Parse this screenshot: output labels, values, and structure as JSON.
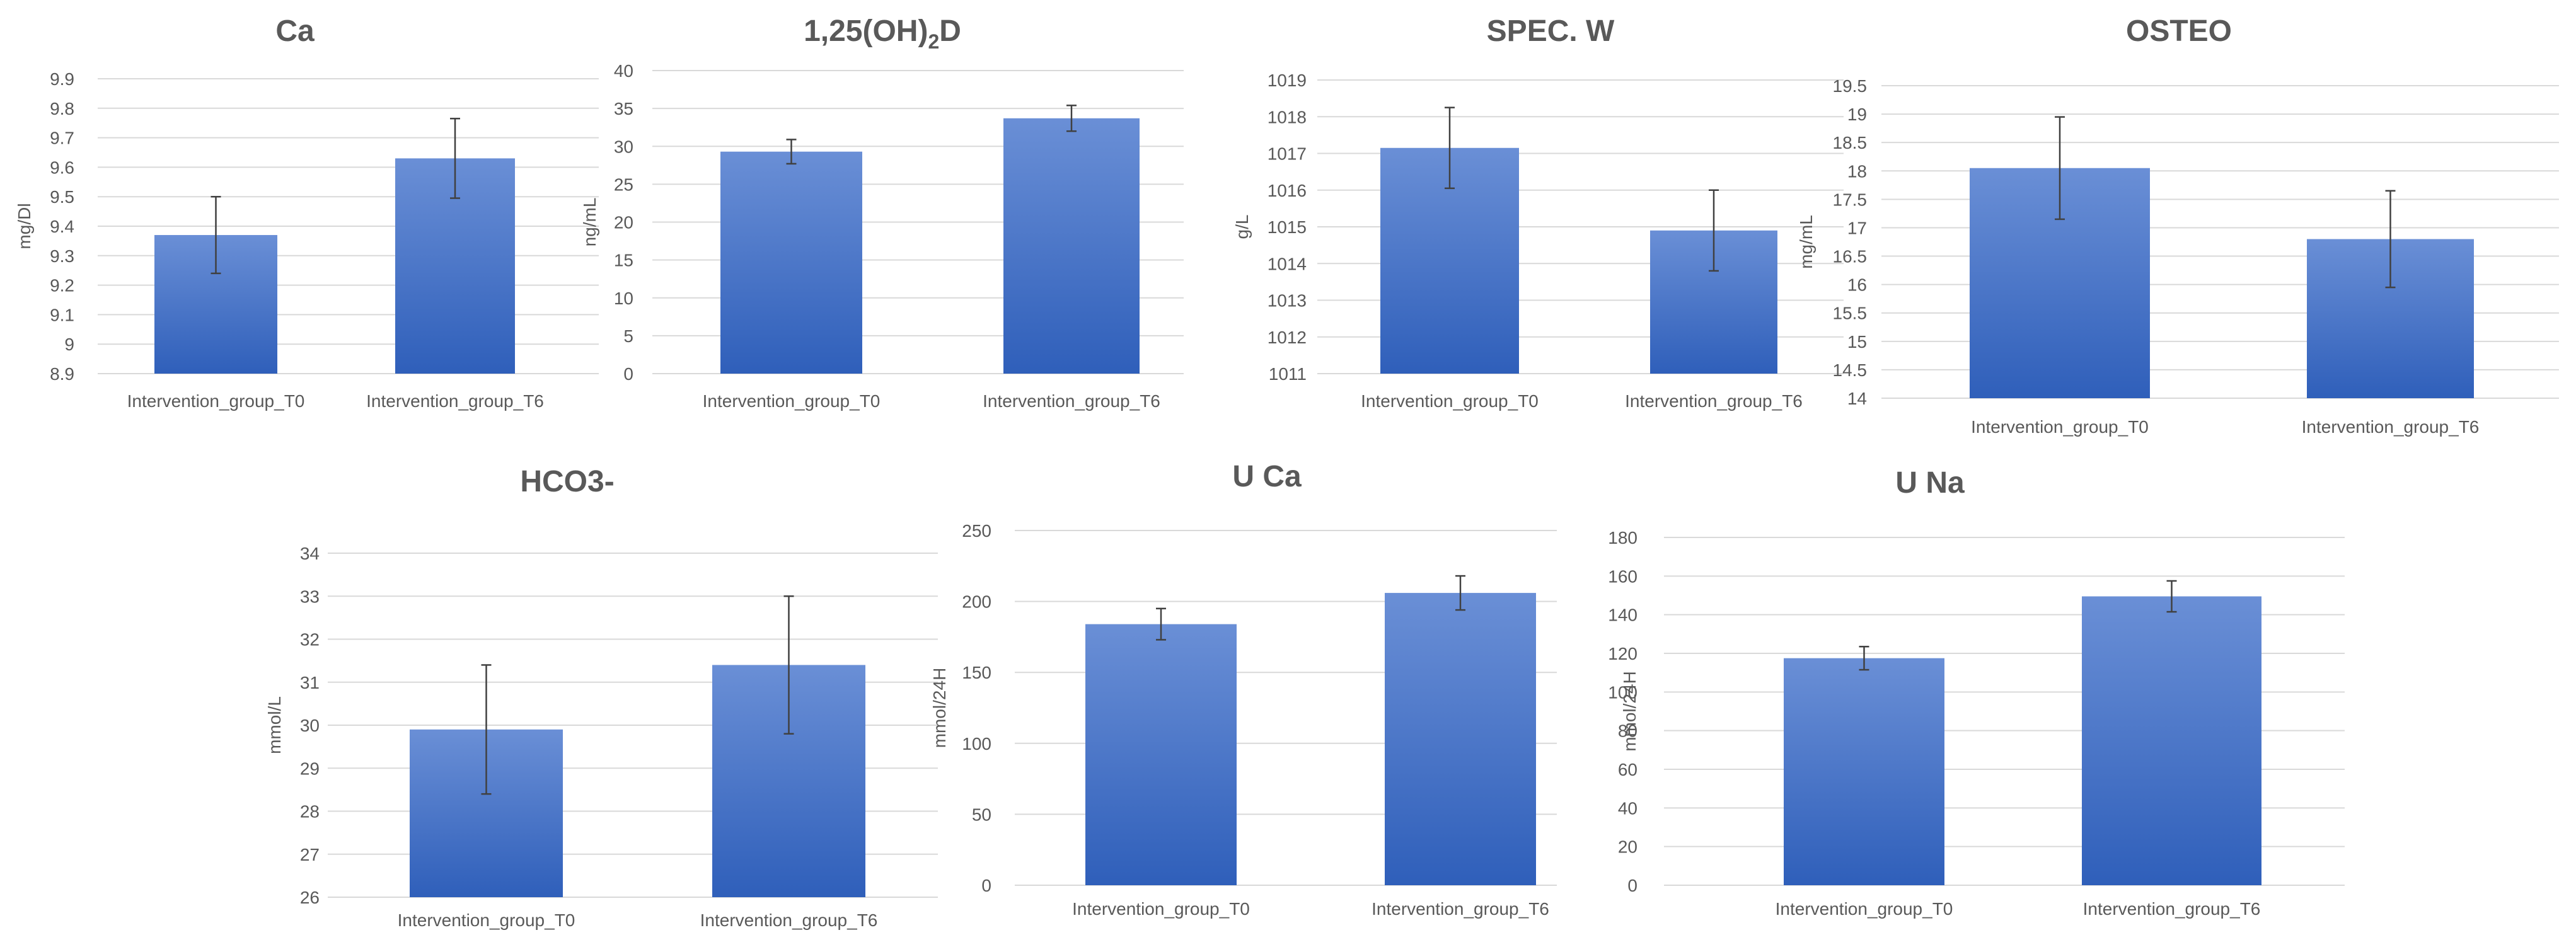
{
  "chart_data": [
    {
      "type": "bar",
      "title": "Ca",
      "ylabel": "mg/Dl",
      "ylim": [
        8.9,
        9.9
      ],
      "ytick_step": 0.1,
      "ytick_labels": [
        "8.9",
        "9",
        "9.1",
        "9.2",
        "9.3",
        "9.4",
        "9.5",
        "9.6",
        "9.7",
        "9.8",
        "9.9"
      ],
      "categories": [
        "Intervention_group_T0",
        "Intervention_group_T6"
      ],
      "values": [
        9.37,
        9.63
      ],
      "errors": [
        0.13,
        0.135
      ]
    },
    {
      "type": "bar",
      "title": "1,25(OH)",
      "title_sub": "2",
      "title_suffix": "D",
      "ylabel": "ng/mL",
      "ylim": [
        0,
        40
      ],
      "ytick_step": 5,
      "ytick_labels": [
        "0",
        "5",
        "10",
        "15",
        "20",
        "25",
        "30",
        "35",
        "40"
      ],
      "categories": [
        "Intervention_group_T0",
        "Intervention_group_T6"
      ],
      "values": [
        29.3,
        33.7
      ],
      "errors": [
        1.6,
        1.7
      ]
    },
    {
      "type": "bar",
      "title": "SPEC. W",
      "ylabel": "g/L",
      "ylim": [
        1011,
        1019
      ],
      "ytick_step": 1,
      "ytick_labels": [
        "1011",
        "1012",
        "1013",
        "1014",
        "1015",
        "1016",
        "1017",
        "1018",
        "1019"
      ],
      "categories": [
        "Intervention_group_T0",
        "Intervention_group_T6"
      ],
      "values": [
        1017.15,
        1014.9
      ],
      "errors": [
        1.1,
        1.1
      ]
    },
    {
      "type": "bar",
      "title": "OSTEO",
      "ylabel": "mg/mL",
      "ylim": [
        14,
        19.5
      ],
      "ytick_step": 0.5,
      "ytick_labels": [
        "14",
        "14.5",
        "15",
        "15.5",
        "16",
        "16.5",
        "17",
        "17.5",
        "18",
        "18.5",
        "19",
        "19.5"
      ],
      "categories": [
        "Intervention_group_T0",
        "Intervention_group_T6"
      ],
      "values": [
        18.05,
        16.8
      ],
      "errors": [
        0.9,
        0.85
      ]
    },
    {
      "type": "bar",
      "title": "HCO3-",
      "ylabel": "mmol/L",
      "ylim": [
        26,
        34
      ],
      "ytick_step": 1,
      "ytick_labels": [
        "26",
        "27",
        "28",
        "29",
        "30",
        "31",
        "32",
        "33",
        "34"
      ],
      "categories": [
        "Intervention_group_T0",
        "Intervention_group_T6"
      ],
      "values": [
        29.9,
        31.4
      ],
      "errors": [
        1.5,
        1.6
      ]
    },
    {
      "type": "bar",
      "title": "U Ca",
      "ylabel": "mmol/24H",
      "ylim": [
        0,
        250
      ],
      "ytick_step": 50,
      "ytick_labels": [
        "0",
        "50",
        "100",
        "150",
        "200",
        "250"
      ],
      "categories": [
        "Intervention_group_T0",
        "Intervention_group_T6"
      ],
      "values": [
        184,
        206
      ],
      "errors": [
        11,
        12
      ]
    },
    {
      "type": "bar",
      "title": "U Na",
      "ylabel": "mmol/24H",
      "ylim": [
        0,
        180
      ],
      "ytick_step": 20,
      "ytick_labels": [
        "0",
        "20",
        "40",
        "60",
        "80",
        "100",
        "120",
        "140",
        "160",
        "180"
      ],
      "categories": [
        "Intervention_group_T0",
        "Intervention_group_T6"
      ],
      "values": [
        117.5,
        149.5
      ],
      "errors": [
        6,
        8
      ]
    }
  ],
  "colors": {
    "bar_top": "#6a8fd6",
    "bar_bottom": "#2f5fba",
    "grid": "#d9d9d9",
    "text": "#595959",
    "error_bar": "#404040"
  }
}
